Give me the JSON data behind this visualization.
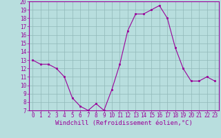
{
  "x": [
    0,
    1,
    2,
    3,
    4,
    5,
    6,
    7,
    8,
    9,
    10,
    11,
    12,
    13,
    14,
    15,
    16,
    17,
    18,
    19,
    20,
    21,
    22,
    23
  ],
  "y": [
    13,
    12.5,
    12.5,
    12,
    11,
    8.5,
    7.5,
    7,
    7.8,
    7,
    9.5,
    12.5,
    16.5,
    18.5,
    18.5,
    19,
    19.5,
    18,
    14.5,
    12,
    10.5,
    10.5,
    11,
    10.5
  ],
  "line_color": "#990099",
  "marker_color": "#990099",
  "bg_color": "#b8dede",
  "grid_color": "#90b8b8",
  "xlabel": "Windchill (Refroidissement éolien,°C)",
  "xlabel_color": "#990099",
  "ylim": [
    7,
    20
  ],
  "yticks": [
    7,
    8,
    9,
    10,
    11,
    12,
    13,
    14,
    15,
    16,
    17,
    18,
    19,
    20
  ],
  "xticks": [
    0,
    1,
    2,
    3,
    4,
    5,
    6,
    7,
    8,
    9,
    10,
    11,
    12,
    13,
    14,
    15,
    16,
    17,
    18,
    19,
    20,
    21,
    22,
    23
  ],
  "tick_color": "#990099",
  "spine_color": "#990099",
  "tick_fontsize": 5.5,
  "xlabel_fontsize": 6.5
}
